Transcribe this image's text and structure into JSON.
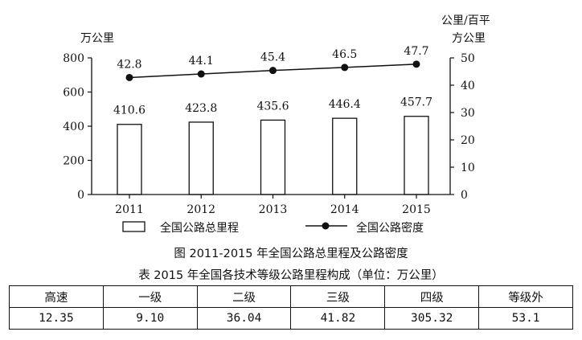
{
  "chart_data": {
    "type": "bar+line",
    "categories": [
      "2011",
      "2012",
      "2013",
      "2014",
      "2015"
    ],
    "series": [
      {
        "name": "全国公路总里程",
        "type": "bar",
        "axis": "left",
        "values": [
          410.6,
          423.8,
          435.6,
          446.4,
          457.7
        ]
      },
      {
        "name": "全国公路密度",
        "type": "line",
        "axis": "right",
        "values": [
          42.8,
          44.1,
          45.4,
          46.5,
          47.7
        ]
      }
    ],
    "ylabel_left": "万公里",
    "ylabel_right": [
      "公里/百平",
      "方公里"
    ],
    "ylim_left": [
      0,
      800
    ],
    "ylim_right": [
      0,
      50
    ],
    "yticks_left": [
      "0",
      "200",
      "400",
      "600",
      "800"
    ],
    "yticks_right": [
      "0",
      "10",
      "20",
      "30",
      "40",
      "50"
    ],
    "grid": false,
    "legend_position": "bottom"
  },
  "figure_caption": "图 2011-2015 年全国公路总里程及公路密度",
  "table": {
    "caption": "表 2015 年全国各技术等级公路里程构成（单位：万公里）",
    "headers": [
      "高速",
      "一级",
      "二级",
      "三级",
      "四级",
      "等级外"
    ],
    "values": [
      "12.35",
      "9.10",
      "36.04",
      "41.82",
      "305.32",
      "53.1"
    ]
  }
}
